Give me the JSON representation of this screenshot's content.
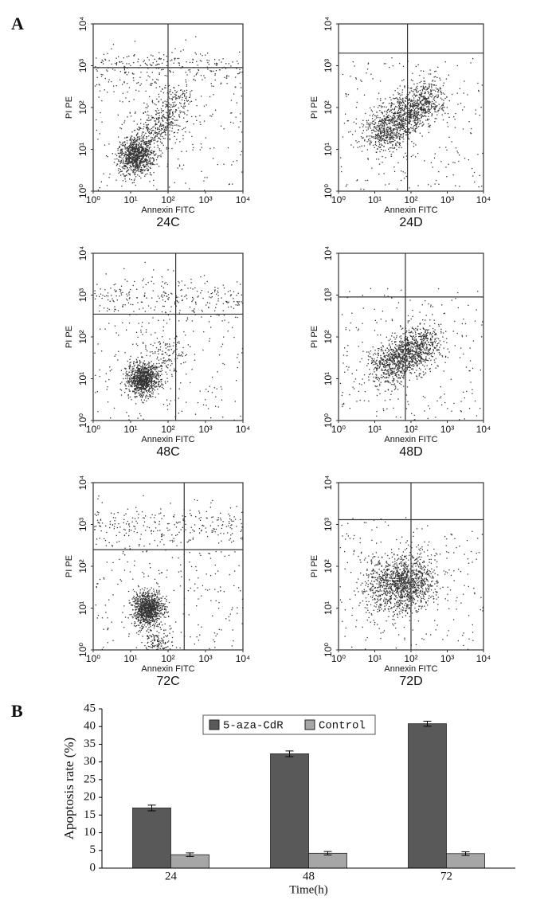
{
  "panels": [
    "A",
    "B"
  ],
  "chart_data": [
    {
      "type": "scatter",
      "title": "24C",
      "xlabel": "Annexin FITC",
      "ylabel": "PI PE",
      "log": true,
      "xlim": [
        1,
        10000
      ],
      "ylim": [
        1,
        10000
      ],
      "xticks": [
        {
          "value": 1,
          "label": "10⁰"
        },
        {
          "value": 10,
          "label": "10¹"
        },
        {
          "value": 100,
          "label": "10²"
        },
        {
          "value": 1000,
          "label": "10³"
        },
        {
          "value": 10000,
          "label": "10⁴"
        }
      ],
      "yticks": [
        {
          "value": 1,
          "label": "10⁰"
        },
        {
          "value": 10,
          "label": "10¹"
        },
        {
          "value": 100,
          "label": "10²"
        },
        {
          "value": 1000,
          "label": "10³"
        },
        {
          "value": 10000,
          "label": "10⁴"
        }
      ],
      "gates": {
        "x": 100,
        "y": 900
      }
    },
    {
      "type": "scatter",
      "title": "24D",
      "xlabel": "Annexin FITC",
      "ylabel": "PI PE",
      "log": true,
      "xlim": [
        1,
        10000
      ],
      "ylim": [
        1,
        10000
      ],
      "xticks": [
        {
          "value": 1,
          "label": "10⁰"
        },
        {
          "value": 10,
          "label": "10¹"
        },
        {
          "value": 100,
          "label": "10²"
        },
        {
          "value": 1000,
          "label": "10³"
        },
        {
          "value": 10000,
          "label": "10⁴"
        }
      ],
      "yticks": [
        {
          "value": 1,
          "label": "10⁰"
        },
        {
          "value": 10,
          "label": "10¹"
        },
        {
          "value": 100,
          "label": "10²"
        },
        {
          "value": 1000,
          "label": "10³"
        },
        {
          "value": 10000,
          "label": "10⁴"
        }
      ],
      "gates": {
        "x": 80,
        "y": 2000
      }
    },
    {
      "type": "scatter",
      "title": "48C",
      "xlabel": "Annexin FITC",
      "ylabel": "PI PE",
      "log": true,
      "xlim": [
        1,
        10000
      ],
      "ylim": [
        1,
        10000
      ],
      "xticks": [
        {
          "value": 1,
          "label": "10⁰"
        },
        {
          "value": 10,
          "label": "10¹"
        },
        {
          "value": 100,
          "label": "10²"
        },
        {
          "value": 1000,
          "label": "10³"
        },
        {
          "value": 10000,
          "label": "10⁴"
        }
      ],
      "yticks": [
        {
          "value": 1,
          "label": "10⁰"
        },
        {
          "value": 10,
          "label": "10¹"
        },
        {
          "value": 100,
          "label": "10²"
        },
        {
          "value": 1000,
          "label": "10³"
        },
        {
          "value": 10000,
          "label": "10⁴"
        }
      ],
      "gates": {
        "x": 160,
        "y": 350
      }
    },
    {
      "type": "scatter",
      "title": "48D",
      "xlabel": "Annexin FITC",
      "ylabel": "PI PE",
      "log": true,
      "xlim": [
        1,
        10000
      ],
      "ylim": [
        1,
        10000
      ],
      "xticks": [
        {
          "value": 1,
          "label": "10⁰"
        },
        {
          "value": 10,
          "label": "10¹"
        },
        {
          "value": 100,
          "label": "10²"
        },
        {
          "value": 1000,
          "label": "10³"
        },
        {
          "value": 10000,
          "label": "10⁴"
        }
      ],
      "yticks": [
        {
          "value": 1,
          "label": "10⁰"
        },
        {
          "value": 10,
          "label": "10¹"
        },
        {
          "value": 100,
          "label": "10²"
        },
        {
          "value": 1000,
          "label": "10³"
        },
        {
          "value": 10000,
          "label": "10⁴"
        }
      ],
      "gates": {
        "x": 70,
        "y": 900
      }
    },
    {
      "type": "scatter",
      "title": "72C",
      "xlabel": "Annexin FITC",
      "ylabel": "PI PE",
      "log": true,
      "xlim": [
        1,
        10000
      ],
      "ylim": [
        1,
        10000
      ],
      "xticks": [
        {
          "value": 1,
          "label": "10⁰"
        },
        {
          "value": 10,
          "label": "10¹"
        },
        {
          "value": 100,
          "label": "10²"
        },
        {
          "value": 1000,
          "label": "10³"
        },
        {
          "value": 10000,
          "label": "10⁴"
        }
      ],
      "yticks": [
        {
          "value": 1,
          "label": "10⁰"
        },
        {
          "value": 10,
          "label": "10¹"
        },
        {
          "value": 100,
          "label": "10²"
        },
        {
          "value": 1000,
          "label": "10³"
        },
        {
          "value": 10000,
          "label": "10⁴"
        }
      ],
      "gates": {
        "x": 270,
        "y": 250
      }
    },
    {
      "type": "scatter",
      "title": "72D",
      "xlabel": "Annexin FITC",
      "ylabel": "PI PE",
      "log": true,
      "xlim": [
        1,
        10000
      ],
      "ylim": [
        1,
        10000
      ],
      "xticks": [
        {
          "value": 1,
          "label": "10⁰"
        },
        {
          "value": 10,
          "label": "10¹"
        },
        {
          "value": 100,
          "label": "10²"
        },
        {
          "value": 1000,
          "label": "10³"
        },
        {
          "value": 10000,
          "label": "10⁴"
        }
      ],
      "yticks": [
        {
          "value": 1,
          "label": "10⁰"
        },
        {
          "value": 10,
          "label": "10¹"
        },
        {
          "value": 100,
          "label": "10²"
        },
        {
          "value": 1000,
          "label": "10³"
        },
        {
          "value": 10000,
          "label": "10⁴"
        }
      ],
      "gates": {
        "x": 100,
        "y": 1300
      }
    },
    {
      "type": "bar",
      "xlabel": "Time(h)",
      "ylabel": "Apoptosis rate (%)",
      "categories": [
        "24",
        "48",
        "72"
      ],
      "series": [
        {
          "name": "5-aza-CdR",
          "color": "#595959",
          "values": [
            17.0,
            32.3,
            40.8
          ],
          "errors": [
            0.8,
            0.8,
            0.7
          ]
        },
        {
          "name": "Control",
          "color": "#a6a6a6",
          "values": [
            3.8,
            4.2,
            4.1
          ],
          "errors": [
            0.5,
            0.5,
            0.5
          ]
        }
      ],
      "ylim": [
        0,
        45
      ],
      "yticks": [
        0,
        5,
        10,
        15,
        20,
        25,
        30,
        35,
        40,
        45
      ],
      "legend": "top"
    }
  ]
}
